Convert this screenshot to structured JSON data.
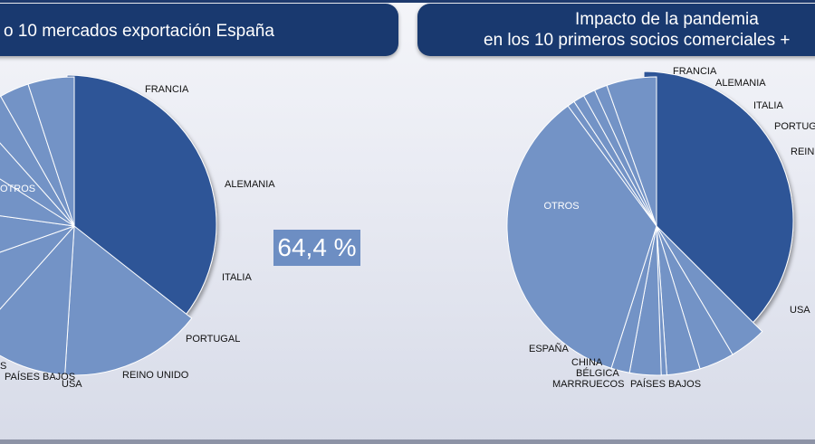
{
  "left_chart": {
    "title": "o 10 mercados exportación España"
  },
  "right_chart": {
    "title_line1": "Impacto de la pandemia",
    "title_line2": "en los 10 primeros socios comerciales +"
  },
  "badge": {
    "value": "64,4 %"
  },
  "colors": {
    "banner": "#19396f",
    "slice_dark": "#2f5597",
    "slice_light": "#7393c6",
    "badge": "#6d8ec3"
  },
  "chart_data": [
    {
      "type": "pie",
      "title": "o 10 mercados exportación España",
      "exploded": "OTROS",
      "slices": [
        {
          "label": "OTROS",
          "value": 35.6
        },
        {
          "label": "FRANCIA",
          "value": 15.4
        },
        {
          "label": "ALEMANIA",
          "value": 10.6
        },
        {
          "label": "ITALIA",
          "value": 8.0
        },
        {
          "label": "PORTUGAL",
          "value": 7.6
        },
        {
          "label": "REINO UNIDO",
          "value": 6.8
        },
        {
          "label": "USA",
          "value": 4.4
        },
        {
          "label": "PAÍSES BAJOS",
          "value": 3.4
        },
        {
          "label": "S",
          "value": 3.2
        },
        {
          "label": "",
          "value": 5.0
        }
      ]
    },
    {
      "type": "pie",
      "title": "Impacto de la pandemia en los 10 primeros socios comerciales +",
      "exploded": "OTROS",
      "slices": [
        {
          "label": "OTROS",
          "value": 37.5
        },
        {
          "label": "FRANCIA",
          "value": 4.0
        },
        {
          "label": "ALEMANIA",
          "value": 3.8
        },
        {
          "label": "ITALIA",
          "value": 3.6
        },
        {
          "label": "PORTUG",
          "value": 0.6
        },
        {
          "label": "REIN",
          "value": 3.4
        },
        {
          "label": "",
          "value": 2.0
        },
        {
          "label": "USA",
          "value": 35.0
        },
        {
          "label": "PAÍSES BAJOS",
          "value": 0.8
        },
        {
          "label": "MARRRUECOS",
          "value": 1.2
        },
        {
          "label": "BÉLGICA",
          "value": 1.3
        },
        {
          "label": "CHINA",
          "value": 1.4
        },
        {
          "label": "ESPAÑA",
          "value": 5.4
        }
      ]
    }
  ]
}
